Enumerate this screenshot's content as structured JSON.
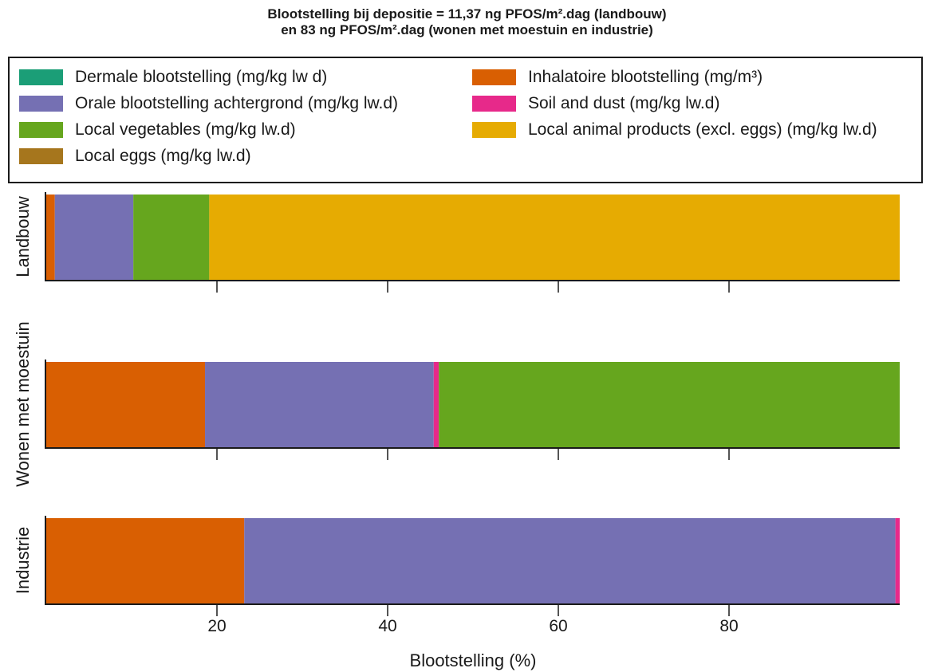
{
  "chart_data": {
    "type": "bar",
    "orientation": "horizontal",
    "stacked": true,
    "title": "Blootstelling bij depositie = 11,37 ng PFOS/m².dag (landbouw)",
    "subtitle": "en 83 ng PFOS/m².dag (wonen met moestuin en industrie)",
    "xlabel": "Blootstelling (%)",
    "xlim": [
      0,
      100
    ],
    "x_ticks": [
      20,
      40,
      60,
      80
    ],
    "grid": false,
    "legend_position": "top",
    "categories": [
      "Landbouw",
      "Wonen met moestuin",
      "Industrie"
    ],
    "series": [
      {
        "name": "Dermale blootstelling (mg/kg lw d)",
        "color": "#1b9e77",
        "values": [
          0,
          0,
          0
        ]
      },
      {
        "name": "Inhalatoire blootstelling (mg/m³)",
        "color": "#d95f02",
        "values": [
          1.0,
          18.6,
          23.2
        ]
      },
      {
        "name": "Orale blootstelling achtergrond (mg/kg lw.d)",
        "color": "#7570b3",
        "values": [
          9.2,
          26.8,
          76.3
        ]
      },
      {
        "name": "Soil and dust (mg/kg lw.d)",
        "color": "#e7298a",
        "values": [
          0,
          0.6,
          0.5
        ]
      },
      {
        "name": "Local vegetables (mg/kg lw.d)",
        "color": "#66a61e",
        "values": [
          8.9,
          54.0,
          0
        ]
      },
      {
        "name": "Local animal products (excl. eggs) (mg/kg lw.d)",
        "color": "#e6ab02",
        "values": [
          80.9,
          0,
          0
        ]
      },
      {
        "name": "Local eggs (mg/kg lw.d)",
        "color": "#a6761d",
        "values": [
          0,
          0,
          0
        ]
      }
    ]
  }
}
